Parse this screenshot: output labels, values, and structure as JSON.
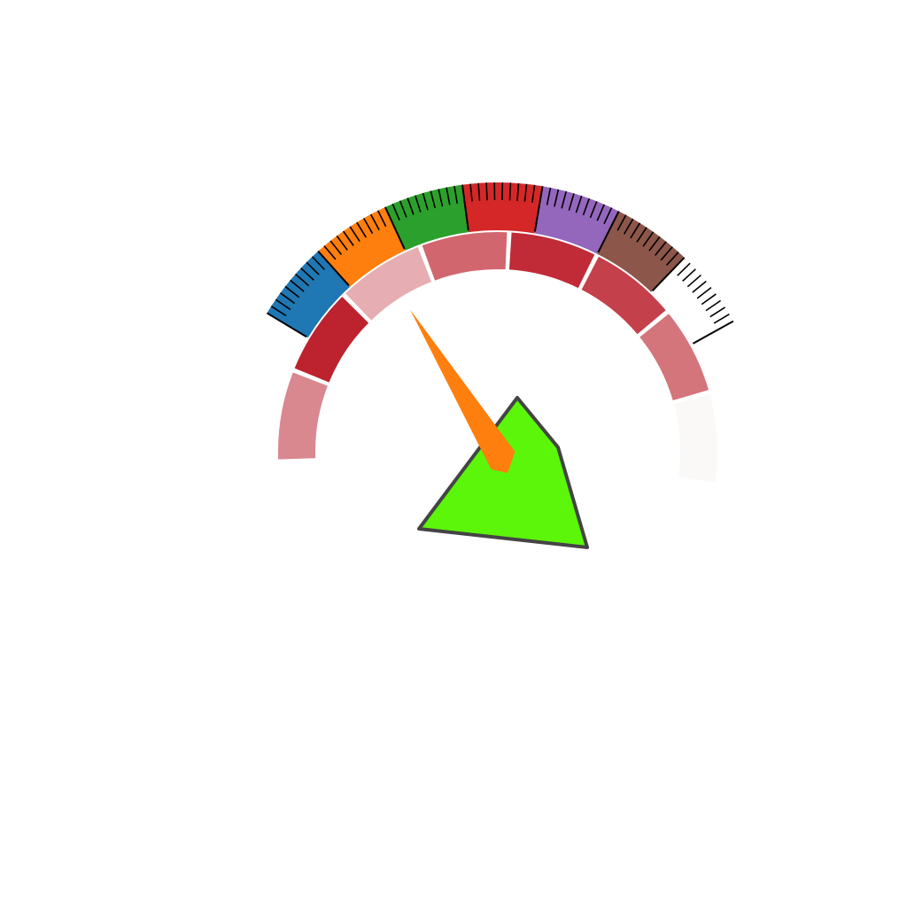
{
  "chart_data": {
    "type": "gauge",
    "value": 0.33,
    "inner_band": {
      "colors": [
        "#d9888f",
        "#bd222f",
        "#e6aeb2",
        "#d2666e",
        "#c02b37",
        "#c4404b",
        "#d4747b",
        "#faf9f8"
      ]
    },
    "outer_band": {
      "colors": [
        "#1f77b4",
        "#ff7f0e",
        "#2ca02c",
        "#d62728",
        "#9467bd",
        "#8c564b",
        "#ffffff"
      ]
    },
    "needle_color": "#ff7f0e",
    "hub_color": "#5cf60a",
    "hub_outline_color": "#444444",
    "tick_color": "#000000"
  }
}
